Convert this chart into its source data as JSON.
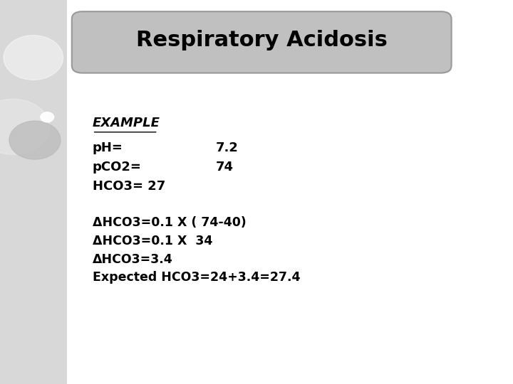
{
  "title": "Respiratory Acidosis",
  "title_fontsize": 22,
  "title_box_color": "#c0c0c0",
  "title_box_edge_color": "#999999",
  "background_color": "#ffffff",
  "left_strip_color": "#d8d8d8",
  "example_label": "EXAMPLE",
  "line1_left": "pH=",
  "line1_right": "7.2",
  "line2_left": "pCO2=",
  "line2_right": "74",
  "line3": "HCO3= 27",
  "calc_line1": "ΔHCO3=0.1 X ( 74-40)",
  "calc_line2": "ΔHCO3=0.1 X  34",
  "calc_line3": "ΔHCO3=3.4",
  "calc_line4": "Expected HCO3=24+3.4=27.4",
  "text_fontsize": 13,
  "example_fontsize": 13
}
